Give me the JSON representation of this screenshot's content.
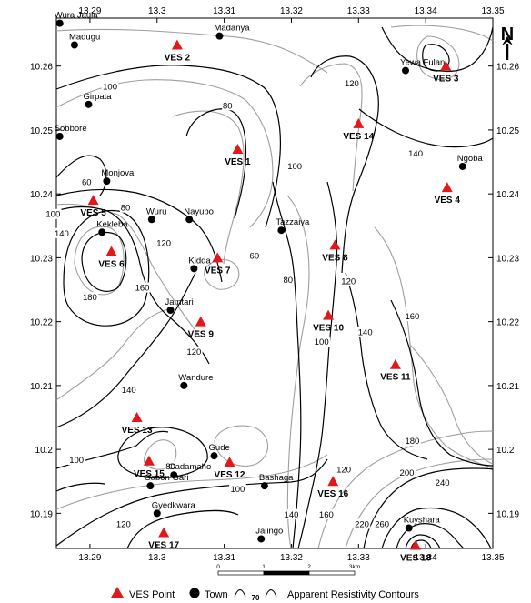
{
  "axes": {
    "x_ticks": [
      "13.29",
      "13.3",
      "13.31",
      "13.32",
      "13.33",
      "13.34",
      "13.35"
    ],
    "y_ticks": [
      "10.26",
      "10.25",
      "10.24",
      "10.23",
      "10.22",
      "10.21",
      "10.2",
      "10.19"
    ]
  },
  "north_arrow": {
    "label": "N"
  },
  "towns": [
    {
      "name": "Wura Jaula",
      "lon": 13.2855,
      "lat": 10.2667
    },
    {
      "name": "Madugu",
      "lon": 13.2877,
      "lat": 10.2633
    },
    {
      "name": "Madanya",
      "lon": 13.3093,
      "lat": 10.2647
    },
    {
      "name": "Girpata",
      "lon": 13.2898,
      "lat": 10.254
    },
    {
      "name": "Sobbore",
      "lon": 13.2855,
      "lat": 10.249
    },
    {
      "name": "Monjova",
      "lon": 13.2925,
      "lat": 10.242
    },
    {
      "name": "Wuru",
      "lon": 13.2992,
      "lat": 10.236
    },
    {
      "name": "Nayubo",
      "lon": 13.3048,
      "lat": 10.236
    },
    {
      "name": "Kekleba",
      "lon": 13.2918,
      "lat": 10.234
    },
    {
      "name": "Tazzaiya",
      "lon": 13.3185,
      "lat": 10.2343
    },
    {
      "name": "Kidda",
      "lon": 13.3055,
      "lat": 10.2283
    },
    {
      "name": "Jamtari",
      "lon": 13.302,
      "lat": 10.2218
    },
    {
      "name": "Wandure",
      "lon": 13.304,
      "lat": 10.21
    },
    {
      "name": "Gude",
      "lon": 13.3085,
      "lat": 10.199
    },
    {
      "name": "Gadamaho",
      "lon": 13.3025,
      "lat": 10.196
    },
    {
      "name": "Sabon Gari",
      "lon": 13.299,
      "lat": 10.1943
    },
    {
      "name": "Bashaga",
      "lon": 13.316,
      "lat": 10.1943
    },
    {
      "name": "Gyedkwara",
      "lon": 13.3,
      "lat": 10.19
    },
    {
      "name": "Jalingo",
      "lon": 13.3155,
      "lat": 10.186
    },
    {
      "name": "Yewa Fulani",
      "lon": 13.337,
      "lat": 10.2593
    },
    {
      "name": "Ngoba",
      "lon": 13.3455,
      "lat": 10.2443
    },
    {
      "name": "Kuyshara",
      "lon": 13.3375,
      "lat": 10.1877
    }
  ],
  "ves_points": [
    {
      "name": "VES 1",
      "lon": 13.312,
      "lat": 10.247
    },
    {
      "name": "VES 2",
      "lon": 13.303,
      "lat": 10.2633
    },
    {
      "name": "VES 3",
      "lon": 13.343,
      "lat": 10.26
    },
    {
      "name": "VES 4",
      "lon": 13.3432,
      "lat": 10.241
    },
    {
      "name": "VES 5",
      "lon": 13.2905,
      "lat": 10.239
    },
    {
      "name": "VES 6",
      "lon": 13.2932,
      "lat": 10.231
    },
    {
      "name": "VES 7",
      "lon": 13.309,
      "lat": 10.23
    },
    {
      "name": "VES 8",
      "lon": 13.3265,
      "lat": 10.232
    },
    {
      "name": "VES 9",
      "lon": 13.3065,
      "lat": 10.22
    },
    {
      "name": "VES 10",
      "lon": 13.3255,
      "lat": 10.221
    },
    {
      "name": "VES 11",
      "lon": 13.3355,
      "lat": 10.2133
    },
    {
      "name": "VES 12",
      "lon": 13.3108,
      "lat": 10.198
    },
    {
      "name": "VES 13",
      "lon": 13.297,
      "lat": 10.205
    },
    {
      "name": "VES 14",
      "lon": 13.33,
      "lat": 10.251
    },
    {
      "name": "VES 15",
      "lon": 13.2988,
      "lat": 10.1982
    },
    {
      "name": "VES 16",
      "lon": 13.3262,
      "lat": 10.195
    },
    {
      "name": "VES 17",
      "lon": 13.301,
      "lat": 10.187
    },
    {
      "name": "VES 18",
      "lon": 13.3385,
      "lat": 10.185
    }
  ],
  "contour_labels": [
    {
      "text": "100",
      "lon": 13.293,
      "lat": 10.2565
    },
    {
      "text": "80",
      "lon": 13.3105,
      "lat": 10.2535
    },
    {
      "text": "120",
      "lon": 13.329,
      "lat": 10.257
    },
    {
      "text": "140",
      "lon": 13.3385,
      "lat": 10.246
    },
    {
      "text": "100",
      "lon": 13.3205,
      "lat": 10.244
    },
    {
      "text": "60",
      "lon": 13.2895,
      "lat": 10.2415
    },
    {
      "text": "80",
      "lon": 13.2953,
      "lat": 10.2375
    },
    {
      "text": "100",
      "lon": 13.2845,
      "lat": 10.2365
    },
    {
      "text": "140",
      "lon": 13.2858,
      "lat": 10.2335
    },
    {
      "text": "120",
      "lon": 13.301,
      "lat": 10.232
    },
    {
      "text": "60",
      "lon": 13.3145,
      "lat": 10.23
    },
    {
      "text": "160",
      "lon": 13.2978,
      "lat": 10.225
    },
    {
      "text": "180",
      "lon": 13.29,
      "lat": 10.2235
    },
    {
      "text": "80",
      "lon": 13.3195,
      "lat": 10.2262
    },
    {
      "text": "120",
      "lon": 13.3285,
      "lat": 10.226
    },
    {
      "text": "120",
      "lon": 13.3055,
      "lat": 10.215
    },
    {
      "text": "100",
      "lon": 13.3245,
      "lat": 10.2165
    },
    {
      "text": "140",
      "lon": 13.331,
      "lat": 10.218
    },
    {
      "text": "160",
      "lon": 13.338,
      "lat": 10.2205
    },
    {
      "text": "140",
      "lon": 13.2958,
      "lat": 10.209
    },
    {
      "text": "180",
      "lon": 13.338,
      "lat": 10.201
    },
    {
      "text": "80",
      "lon": 13.302,
      "lat": 10.197
    },
    {
      "text": "100",
      "lon": 13.288,
      "lat": 10.198
    },
    {
      "text": "100",
      "lon": 13.312,
      "lat": 10.1935
    },
    {
      "text": "120",
      "lon": 13.3278,
      "lat": 10.1965
    },
    {
      "text": "200",
      "lon": 13.3372,
      "lat": 10.196
    },
    {
      "text": "240",
      "lon": 13.3425,
      "lat": 10.1945
    },
    {
      "text": "140",
      "lon": 13.32,
      "lat": 10.1895
    },
    {
      "text": "160",
      "lon": 13.3252,
      "lat": 10.1895
    },
    {
      "text": "120",
      "lon": 13.295,
      "lat": 10.188
    },
    {
      "text": "220",
      "lon": 13.3305,
      "lat": 10.188
    },
    {
      "text": "260",
      "lon": 13.3335,
      "lat": 10.188
    }
  ],
  "scale_bar": {
    "ticks": [
      "0",
      "1",
      "2",
      "3km"
    ]
  },
  "legend": {
    "ves_label": "VES Point",
    "town_label": "Town",
    "contour_value": "70",
    "contour_label": "Apparent Resistivity Contours"
  }
}
